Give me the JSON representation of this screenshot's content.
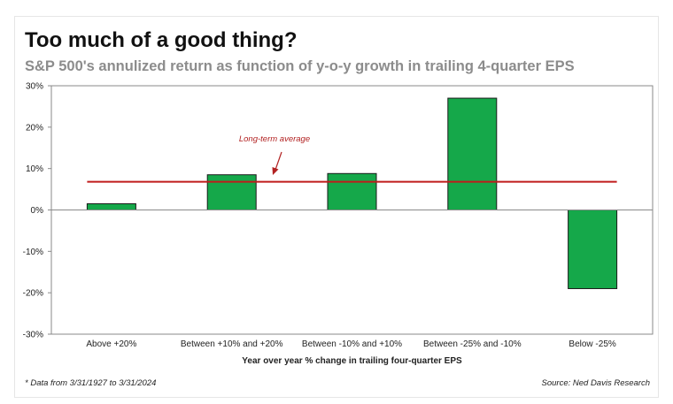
{
  "header": {
    "title": "Too much of a good thing?",
    "subtitle": "S&P 500's annulized return as function of y-o-y growth in trailing 4-quarter EPS"
  },
  "footer": {
    "footnote": "* Data from 3/31/1927 to 3/31/2024",
    "source": "Source: Ned Davis Research"
  },
  "chart_data": {
    "type": "bar",
    "categories": [
      "Above +20%",
      "Between +10% and +20%",
      "Between -10% and +10%",
      "Between -25% and -10%",
      "Below -25%"
    ],
    "series": [
      {
        "values": [
          1.5,
          8.5,
          8.8,
          27.0,
          -19.0
        ]
      }
    ],
    "reference_line": {
      "label": "Long-term average",
      "value": 6.8
    },
    "xlabel": "Year over year % change in trailing four-quarter EPS",
    "ylabel": "",
    "ylim": [
      -30,
      30
    ],
    "yticks": [
      30,
      20,
      10,
      0,
      -10,
      -20,
      -30
    ],
    "ytick_labels": [
      "30%",
      "20%",
      "10%",
      "0%",
      "-10%",
      "-20%",
      "-30%"
    ],
    "grid": false,
    "colors": {
      "bar_fill": "#15a84a",
      "bar_stroke": "#1a1a1a",
      "reference_line": "#c01b1b",
      "annotation": "#b22222"
    }
  }
}
